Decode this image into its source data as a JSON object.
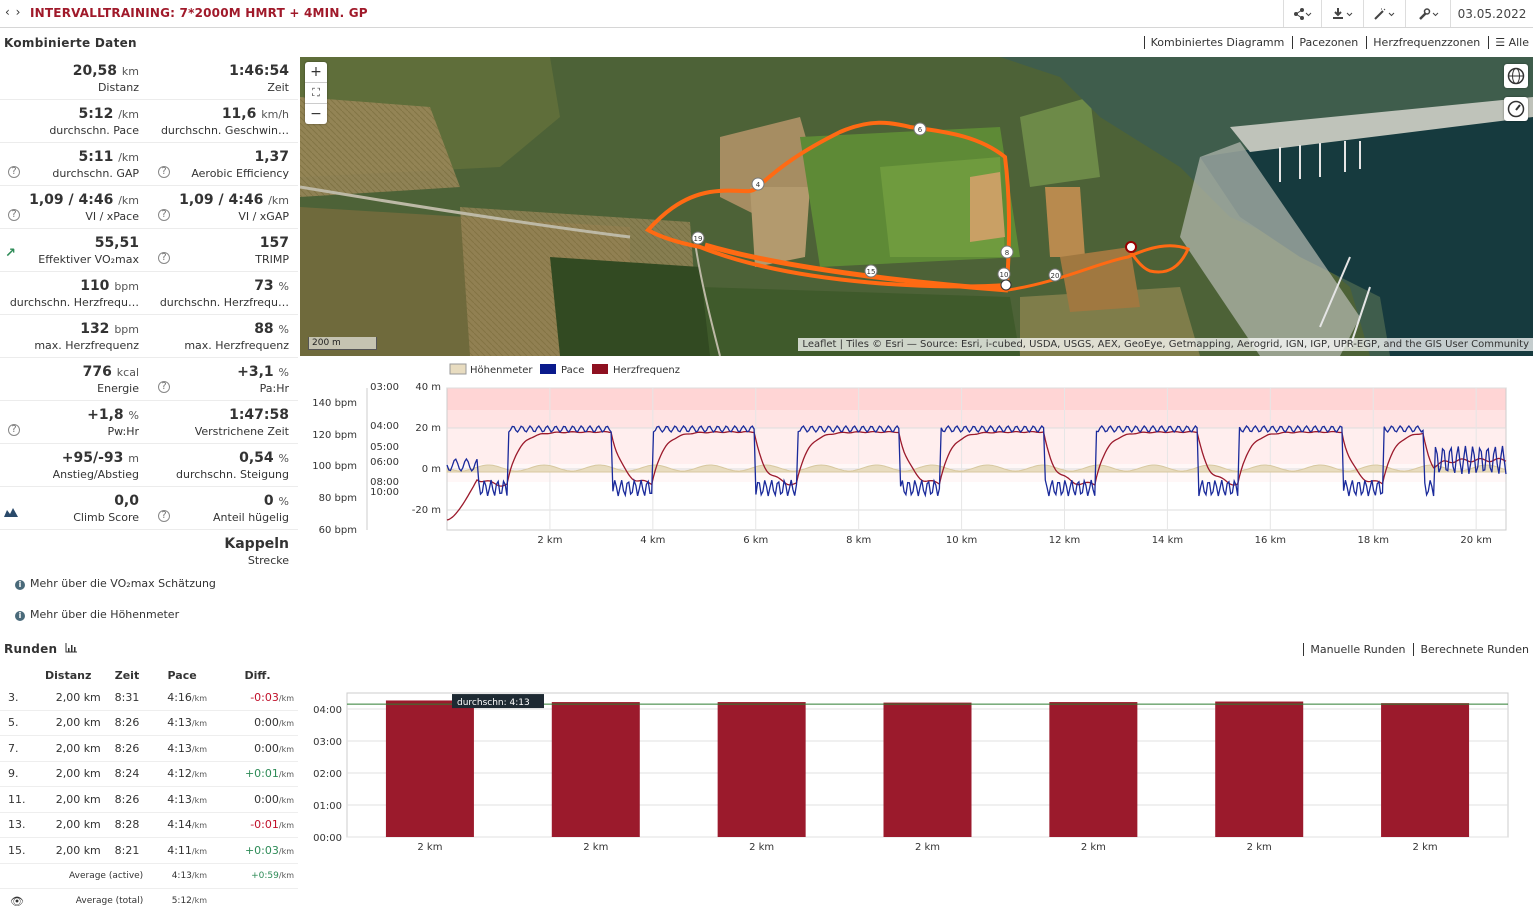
{
  "header": {
    "nav": "‹ ›",
    "title": "INTERVALLTRAINING: 7*2000M HMRT + 4MIN. GP",
    "date": "03.05.2022",
    "buttons": [
      "share-icon",
      "download-icon",
      "tools-icon",
      "wrench-icon"
    ]
  },
  "section": {
    "title": "Kombinierte Daten",
    "tabs": [
      "Kombiniertes Diagramm",
      "Pacezonen",
      "Herzfrequenzzonen",
      "Alle"
    ]
  },
  "stats": [
    [
      {
        "value": "20,58",
        "unit": "km",
        "label": "Distanz"
      },
      {
        "value": "1:46:54",
        "unit": "",
        "label": "Zeit"
      }
    ],
    [
      {
        "value": "5:12",
        "unit": "/km",
        "label": "durchschn. Pace"
      },
      {
        "value": "11,6",
        "unit": "km/h",
        "label": "durchschn. Geschwin…"
      }
    ],
    [
      {
        "value": "5:11",
        "unit": "/km",
        "label": "durchschn. GAP",
        "help": true
      },
      {
        "value": "1,37",
        "unit": "",
        "label": "Aerobic Efficiency",
        "help": true
      }
    ],
    [
      {
        "value": "1,09 / 4:46",
        "unit": "/km",
        "label": "VI / xPace",
        "help": true
      },
      {
        "value": "1,09 / 4:46",
        "unit": "/km",
        "label": "VI / xGAP",
        "help": true
      }
    ],
    [
      {
        "value": "55,51",
        "unit": "",
        "label": "Effektiver VO₂max",
        "trend": true
      },
      {
        "value": "157",
        "unit": "",
        "label": "TRIMP",
        "help": true
      }
    ],
    [
      {
        "value": "110",
        "unit": "bpm",
        "label": "durchschn. Herzfrequ…"
      },
      {
        "value": "73",
        "unit": "%",
        "label": "durchschn. Herzfrequ…"
      }
    ],
    [
      {
        "value": "132",
        "unit": "bpm",
        "label": "max. Herzfrequenz"
      },
      {
        "value": "88",
        "unit": "%",
        "label": "max. Herzfrequenz"
      }
    ],
    [
      {
        "value": "776",
        "unit": "kcal",
        "label": "Energie"
      },
      {
        "value": "+3,1",
        "unit": "%",
        "label": "Pa:Hr",
        "help": true
      }
    ],
    [
      {
        "value": "+1,8",
        "unit": "%",
        "label": "Pw:Hr",
        "help": true
      },
      {
        "value": "1:47:58",
        "unit": "",
        "label": "Verstrichene Zeit"
      }
    ],
    [
      {
        "value": "+95/-93",
        "unit": "m",
        "label": "Anstieg/Abstieg"
      },
      {
        "value": "0,54",
        "unit": "%",
        "label": "durchschn. Steigung"
      }
    ],
    [
      {
        "value": "0,0",
        "unit": "",
        "label": "Climb Score",
        "mountain": true
      },
      {
        "value": "0",
        "unit": "%",
        "label": "Anteil hügelig",
        "help": true
      }
    ],
    [
      null,
      {
        "value": "Kappeln",
        "unit": "",
        "label": "Strecke"
      }
    ]
  ],
  "links": [
    "Mehr über die VO₂max Schätzung",
    "Mehr über die Höhenmeter"
  ],
  "map": {
    "scale": "200 m",
    "attribution": "Leaflet | Tiles © Esri — Source: Esri, i-cubed, USDA, USGS, AEX, GeoEye, Getmapping, Aerogrid, IGN, IGP, UPR-EGP, and the GIS User Community",
    "markers": [
      "4",
      "6",
      "8",
      "10",
      "15",
      "19",
      "20"
    ]
  },
  "combined_chart": {
    "legend": [
      "Höhenmeter",
      "Pace",
      "Herzfrequenz"
    ],
    "hr_ticks": [
      "140 bpm",
      "120 bpm",
      "100 bpm",
      "80 bpm",
      "60 bpm"
    ],
    "pace_ticks": [
      "03:00",
      "04:00",
      "05:00",
      "06:00",
      "08:00",
      "10:00"
    ],
    "elev_ticks": [
      "40 m",
      "20 m",
      "0 m",
      "-20 m"
    ],
    "x_ticks": [
      "2 km",
      "4 km",
      "6 km",
      "8 km",
      "10 km",
      "12 km",
      "14 km",
      "16 km",
      "18 km",
      "20 km"
    ]
  },
  "rounds": {
    "title": "Runden",
    "tabs": [
      "Manuelle Runden",
      "Berechnete Runden"
    ],
    "headers": [
      "",
      "Distanz",
      "Zeit",
      "Pace",
      "Diff."
    ],
    "rows": [
      {
        "n": "3.",
        "dist": "2,00 km",
        "time": "8:31",
        "pace": "4:16",
        "diff": "-0:03",
        "sign": "neg"
      },
      {
        "n": "5.",
        "dist": "2,00 km",
        "time": "8:26",
        "pace": "4:13",
        "diff": "0:00",
        "sign": "zero"
      },
      {
        "n": "7.",
        "dist": "2,00 km",
        "time": "8:26",
        "pace": "4:13",
        "diff": "0:00",
        "sign": "zero"
      },
      {
        "n": "9.",
        "dist": "2,00 km",
        "time": "8:24",
        "pace": "4:12",
        "diff": "+0:01",
        "sign": "pos"
      },
      {
        "n": "11.",
        "dist": "2,00 km",
        "time": "8:26",
        "pace": "4:13",
        "diff": "0:00",
        "sign": "zero"
      },
      {
        "n": "13.",
        "dist": "2,00 km",
        "time": "8:28",
        "pace": "4:14",
        "diff": "-0:01",
        "sign": "neg"
      },
      {
        "n": "15.",
        "dist": "2,00 km",
        "time": "8:21",
        "pace": "4:11",
        "diff": "+0:03",
        "sign": "pos"
      }
    ],
    "avg_active_label": "Average (active)",
    "avg_active_pace": "4:13",
    "avg_active_diff": "+0:59",
    "avg_total_label": "Average (total)",
    "avg_total_pace": "5:12",
    "unit": "/km"
  },
  "chart_data": {
    "type": "bar",
    "categories": [
      "2 km",
      "2 km",
      "2 km",
      "2 km",
      "2 km",
      "2 km",
      "2 km"
    ],
    "values_seconds": [
      256,
      253,
      253,
      252,
      253,
      254,
      251
    ],
    "values": [
      "4:16",
      "4:13",
      "4:13",
      "4:12",
      "4:13",
      "4:14",
      "4:11"
    ],
    "y_ticks": [
      "04:00",
      "03:00",
      "02:00",
      "01:00",
      "00:00"
    ],
    "ylim_seconds": [
      0,
      270
    ],
    "average_label": "durchschn: 4:13",
    "average_seconds": 253,
    "bar_color": "#9b1a2c"
  }
}
